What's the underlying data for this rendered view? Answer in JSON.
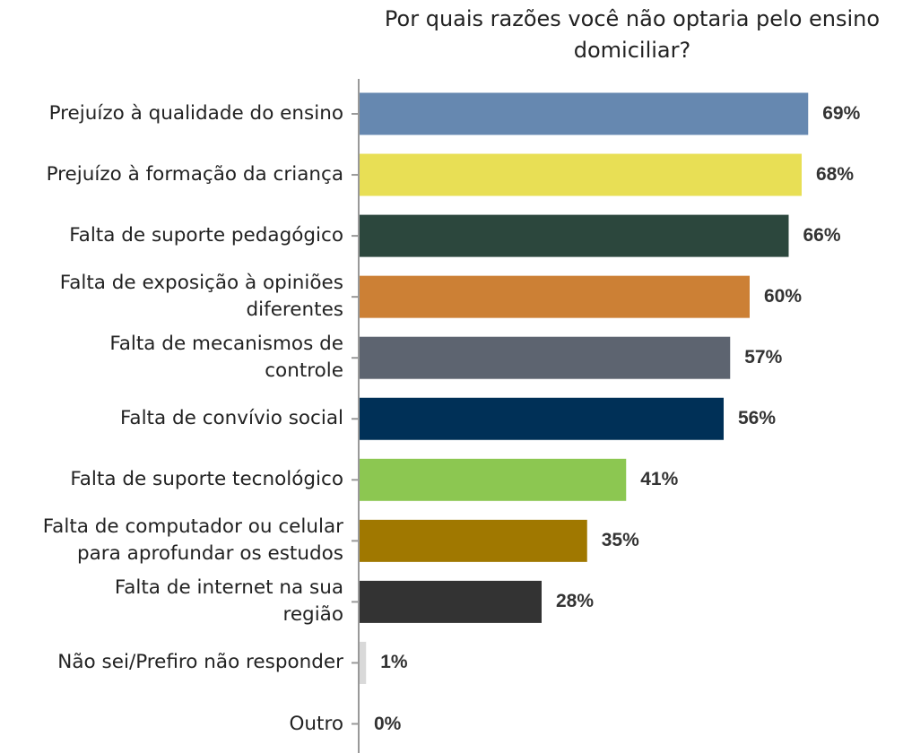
{
  "chart_data": {
    "type": "bar",
    "orientation": "horizontal",
    "title": "Por quais razões você não optaria pelo ensino\ndomiciliar?",
    "categories": [
      "Prejuízo à qualidade do ensino",
      "Prejuízo à formação da criança",
      "Falta de suporte pedagógico",
      "Falta de exposição à opiniões\ndiferentes",
      "Falta de mecanismos de\ncontrole",
      "Falta de convívio social",
      "Falta de suporte tecnológico",
      "Falta de computador ou celular\npara aprofundar os estudos",
      "Falta de internet na sua\nregião",
      "Não sei/Prefiro não responder",
      "Outro"
    ],
    "values": [
      69,
      68,
      66,
      60,
      57,
      56,
      41,
      35,
      28,
      1,
      0
    ],
    "value_labels": [
      "69%",
      "68%",
      "66%",
      "60%",
      "57%",
      "56%",
      "41%",
      "35%",
      "28%",
      "1%",
      "0%"
    ],
    "colors": [
      "#6688b0",
      "#e8df55",
      "#2c473d",
      "#cc8035",
      "#5d6470",
      "#003057",
      "#8cc751",
      "#a07800",
      "#333333",
      "#d9d9d9",
      "#bfbfbf"
    ]
  }
}
